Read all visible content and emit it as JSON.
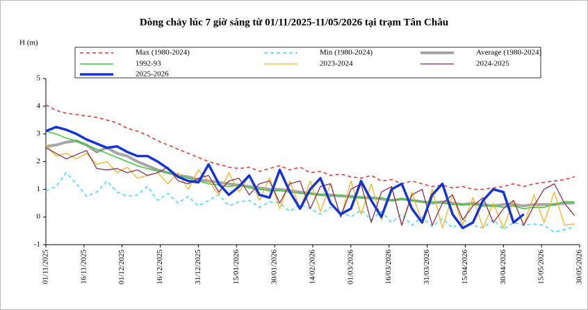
{
  "chart_data": {
    "type": "line",
    "title": "Dòng chảy lúc 7 giờ sáng từ 01/11/2025-11/05/2026 tại trạm Tân Châu",
    "y_label": "H (m)",
    "x": [
      "01/11/2025",
      "05/11/2025",
      "09/11/2025",
      "13/11/2025",
      "17/11/2025",
      "21/11/2025",
      "25/11/2025",
      "29/11/2025",
      "03/12/2025",
      "07/12/2025",
      "11/12/2025",
      "15/12/2025",
      "19/12/2025",
      "23/12/2025",
      "27/12/2025",
      "31/12/2025",
      "04/01/2026",
      "08/01/2026",
      "12/01/2026",
      "16/01/2026",
      "20/01/2026",
      "24/01/2026",
      "28/01/2026",
      "01/02/2026",
      "05/02/2026",
      "09/02/2026",
      "13/02/2026",
      "17/02/2026",
      "21/02/2026",
      "25/02/2026",
      "01/03/2026",
      "05/03/2026",
      "09/03/2026",
      "13/03/2026",
      "17/03/2026",
      "21/03/2026",
      "25/03/2026",
      "29/03/2026",
      "02/04/2026",
      "06/04/2026",
      "10/04/2026",
      "14/04/2026",
      "18/04/2026",
      "22/04/2026",
      "26/04/2026",
      "30/04/2026",
      "04/05/2026",
      "08/05/2026",
      "12/05/2026",
      "16/05/2026",
      "20/05/2026",
      "24/05/2026",
      "28/05/2026"
    ],
    "xlim": [
      "01/11/2025",
      "30/05/2026"
    ],
    "xticks": [
      "01/11/2025",
      "16/11/2025",
      "01/12/2025",
      "16/12/2025",
      "31/12/2025",
      "15/01/2026",
      "30/01/2026",
      "14/02/2026",
      "01/03/2026",
      "16/03/2026",
      "31/03/2026",
      "15/04/2026",
      "30/04/2026",
      "15/05/2026",
      "30/05/2026"
    ],
    "ylim": [
      -1,
      5
    ],
    "yticks": [
      -1,
      0,
      1,
      2,
      3,
      4,
      5
    ],
    "series": [
      {
        "name": "Max (1980-2024)",
        "color": "#e8302a",
        "dashed": true,
        "line_width": 1.5,
        "values": [
          4.05,
          3.85,
          3.75,
          3.7,
          3.65,
          3.6,
          3.5,
          3.4,
          3.2,
          3.1,
          2.95,
          2.75,
          2.6,
          2.45,
          2.3,
          2.15,
          2.0,
          1.9,
          1.8,
          1.75,
          1.8,
          1.65,
          1.75,
          1.85,
          1.7,
          1.8,
          1.6,
          1.65,
          1.5,
          1.55,
          1.45,
          1.4,
          1.5,
          1.3,
          1.35,
          1.2,
          1.3,
          1.2,
          1.1,
          1.15,
          1.05,
          1.1,
          1.0,
          1.0,
          1.05,
          1.1,
          1.2,
          1.1,
          1.2,
          1.25,
          1.3,
          1.35,
          1.45
        ]
      },
      {
        "name": "Min (1980-2024)",
        "color": "#3fd8f0",
        "dashed": true,
        "line_width": 1.5,
        "values": [
          0.95,
          1.1,
          1.6,
          1.2,
          0.75,
          0.9,
          1.3,
          0.9,
          0.75,
          0.8,
          1.1,
          0.6,
          0.85,
          0.5,
          0.75,
          0.4,
          0.6,
          0.8,
          0.4,
          0.55,
          0.6,
          0.35,
          0.55,
          0.5,
          0.2,
          0.45,
          0.3,
          0.1,
          0.35,
          0.2,
          0.0,
          0.25,
          -0.1,
          0.2,
          -0.2,
          0.1,
          -0.3,
          0.0,
          -0.35,
          -0.05,
          -0.4,
          -0.1,
          -0.3,
          -0.4,
          -0.1,
          -0.45,
          -0.2,
          -0.3,
          -0.25,
          -0.3,
          -0.55,
          -0.45,
          -0.35
        ]
      },
      {
        "name": "Average (1980-2024)",
        "color": "#a6a6a6",
        "dashed": false,
        "line_width": 4,
        "values": [
          2.55,
          2.6,
          2.7,
          2.75,
          2.6,
          2.35,
          2.5,
          2.3,
          2.2,
          2.0,
          1.85,
          1.7,
          1.6,
          1.5,
          1.45,
          1.35,
          1.3,
          1.25,
          1.2,
          1.15,
          1.1,
          1.05,
          1.0,
          1.0,
          0.95,
          0.9,
          0.85,
          0.8,
          0.8,
          0.75,
          0.75,
          0.7,
          0.7,
          0.65,
          0.6,
          0.65,
          0.6,
          0.55,
          0.5,
          0.55,
          0.5,
          0.45,
          0.5,
          0.45,
          0.4,
          0.45,
          0.45,
          0.4,
          0.45,
          0.45,
          0.45,
          0.5,
          0.5
        ]
      },
      {
        "name": "1992-93",
        "color": "#33cc33",
        "dashed": false,
        "line_width": 1.5,
        "values": [
          3.1,
          3.0,
          2.85,
          2.75,
          2.6,
          2.45,
          2.3,
          2.15,
          2.0,
          1.85,
          1.75,
          1.65,
          1.6,
          1.5,
          1.4,
          1.3,
          1.2,
          1.15,
          1.1,
          1.15,
          1.05,
          1.0,
          0.95,
          0.95,
          0.9,
          0.85,
          0.85,
          0.8,
          0.75,
          0.8,
          0.7,
          0.7,
          0.65,
          0.7,
          0.6,
          0.65,
          0.6,
          0.55,
          0.55,
          0.5,
          0.45,
          0.45,
          0.45,
          0.4,
          0.4,
          0.35,
          0.4,
          0.3,
          0.35,
          0.35,
          0.45,
          0.55,
          0.55
        ]
      },
      {
        "name": "2023-2024",
        "color": "#f5b21c",
        "dashed": false,
        "line_width": 1.3,
        "values": [
          2.6,
          2.2,
          2.3,
          2.1,
          2.3,
          1.9,
          2.0,
          1.6,
          1.8,
          1.4,
          1.5,
          1.6,
          1.2,
          1.6,
          1.0,
          1.7,
          1.3,
          0.8,
          1.6,
          0.9,
          1.5,
          0.6,
          1.4,
          0.3,
          1.3,
          0.3,
          1.3,
          0.2,
          1.2,
          0.0,
          1.3,
          0.1,
          1.2,
          -0.1,
          1.1,
          -0.3,
          0.9,
          -0.2,
          1.0,
          -0.4,
          0.8,
          -0.3,
          0.7,
          -0.4,
          0.5,
          -0.4,
          0.6,
          -0.3,
          0.8,
          -0.2,
          0.9,
          -0.3,
          -0.25
        ]
      },
      {
        "name": "2024-2025",
        "color": "#8b2b55",
        "dashed": false,
        "line_width": 1.3,
        "values": [
          2.5,
          2.3,
          2.1,
          2.25,
          2.4,
          1.75,
          1.7,
          1.75,
          1.6,
          1.7,
          1.5,
          1.6,
          1.8,
          1.3,
          1.2,
          1.4,
          1.5,
          0.9,
          1.3,
          1.4,
          0.8,
          1.2,
          1.3,
          0.5,
          1.2,
          1.3,
          0.3,
          1.1,
          1.2,
          0.0,
          1.0,
          1.2,
          -0.2,
          0.9,
          1.1,
          -0.3,
          0.8,
          1.0,
          -0.3,
          0.5,
          0.8,
          -0.1,
          0.4,
          0.7,
          -0.2,
          0.3,
          0.6,
          -0.3,
          0.4,
          1.0,
          1.2,
          0.5,
          0.05
        ]
      },
      {
        "name": "2025-2026",
        "color": "#1433d6",
        "dashed": false,
        "line_width": 3.5,
        "values": [
          3.1,
          3.25,
          3.15,
          3.0,
          2.8,
          2.65,
          2.5,
          2.55,
          2.35,
          2.2,
          2.2,
          2.0,
          1.75,
          1.45,
          1.3,
          1.25,
          1.9,
          1.2,
          0.8,
          1.1,
          1.5,
          0.8,
          0.7,
          1.7,
          0.9,
          0.3,
          1.0,
          1.4,
          0.5,
          0.1,
          0.3,
          1.3,
          0.6,
          0.0,
          1.0,
          1.2,
          0.3,
          -0.2,
          0.8,
          1.2,
          0.1,
          -0.4,
          -0.2,
          0.6,
          1.0,
          0.9,
          -0.2,
          0.1,
          null,
          null,
          null,
          null,
          null
        ]
      }
    ]
  }
}
